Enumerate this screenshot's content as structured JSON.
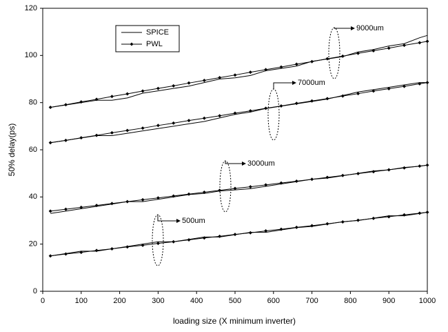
{
  "chart_data": {
    "type": "line",
    "x_label": "loading size (X minimum inverter)",
    "y_label": "50% delay(ps)",
    "x": [
      20,
      60,
      100,
      140,
      180,
      220,
      260,
      300,
      340,
      380,
      420,
      460,
      500,
      540,
      580,
      620,
      660,
      700,
      740,
      780,
      820,
      860,
      900,
      940,
      980,
      1000
    ],
    "legend": [
      {
        "name": "SPICE",
        "key": "spice",
        "marker": "none"
      },
      {
        "name": "PWL",
        "key": "pwl",
        "marker": "diamond"
      }
    ],
    "color": "#000000",
    "groups": [
      {
        "label": "9000um",
        "spice": [
          78,
          79,
          80,
          81,
          81,
          82,
          84,
          85,
          86,
          87,
          88.5,
          90,
          90.5,
          91.5,
          93.5,
          94.5,
          95.5,
          97.5,
          98.5,
          99.5,
          101.5,
          102.5,
          104,
          105,
          107.5,
          108.5
        ],
        "pwl": [
          78,
          79.1,
          80.3,
          81.4,
          82.6,
          83.7,
          84.9,
          86,
          87.1,
          88.3,
          89.4,
          90.6,
          91.7,
          92.9,
          94,
          95.1,
          96.3,
          97.4,
          98.6,
          99.7,
          100.9,
          102,
          103.1,
          104.3,
          105.4,
          106
        ]
      },
      {
        "label": "7000um",
        "spice": [
          63,
          64,
          65,
          66,
          66,
          67,
          68,
          69,
          70,
          71,
          72,
          73.5,
          75,
          76,
          77.5,
          78.5,
          79.5,
          80.5,
          81.5,
          83,
          84.5,
          85.5,
          86.5,
          87.5,
          88.5,
          88.5
        ],
        "pwl": [
          63,
          64,
          65.1,
          66.1,
          67.2,
          68.2,
          69.2,
          70.3,
          71.3,
          72.4,
          73.4,
          74.4,
          75.5,
          76.5,
          77.6,
          78.6,
          79.7,
          80.7,
          81.7,
          82.8,
          83.8,
          84.9,
          85.9,
          86.9,
          88,
          88.5
        ]
      },
      {
        "label": "3000um",
        "spice": [
          33,
          34,
          35,
          36,
          37,
          38,
          38,
          39,
          40,
          41,
          41.5,
          42.5,
          43,
          43.5,
          44.5,
          45.5,
          46.5,
          47.5,
          48,
          49,
          50,
          51,
          51.5,
          52.5,
          53,
          53.5
        ],
        "pwl": [
          34,
          34.8,
          35.6,
          36.4,
          37.2,
          38,
          38.8,
          39.6,
          40.4,
          41.2,
          42,
          42.8,
          43.6,
          44.3,
          45.1,
          45.9,
          46.7,
          47.5,
          48.3,
          49.1,
          49.9,
          50.7,
          51.5,
          52.3,
          53.1,
          53.5
        ]
      },
      {
        "label": "500um",
        "spice": [
          15,
          16,
          17,
          17,
          18,
          19,
          20,
          21,
          21,
          22,
          23,
          23,
          24,
          25,
          25,
          26,
          27,
          27.5,
          28.5,
          29.5,
          30,
          31,
          32,
          32,
          33,
          33.5
        ],
        "pwl": [
          15,
          15.8,
          16.5,
          17.3,
          18,
          18.8,
          19.5,
          20.3,
          21,
          21.8,
          22.6,
          23.3,
          24.1,
          24.8,
          25.6,
          26.3,
          27.1,
          27.8,
          28.6,
          29.4,
          30.1,
          30.9,
          31.6,
          32.4,
          33.1,
          33.5
        ]
      }
    ],
    "xlim": [
      0,
      1000
    ],
    "xticks": [
      0,
      100,
      200,
      300,
      400,
      500,
      600,
      700,
      800,
      900,
      1000
    ],
    "ylim": [
      0,
      120
    ],
    "yticks": [
      0,
      20,
      40,
      60,
      80,
      100,
      120
    ]
  }
}
